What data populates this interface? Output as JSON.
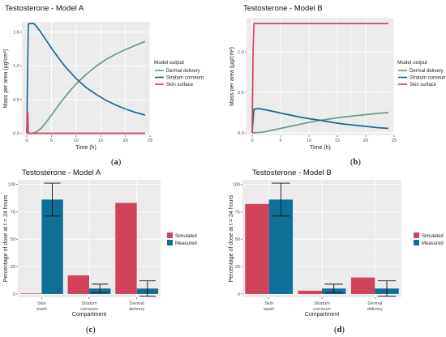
{
  "chart_data": [
    {
      "id": "a",
      "type": "line",
      "title": "Testosterone - Model  A",
      "xlabel": "Time (h)",
      "ylabel": "Mass per area (µg/cm²)",
      "xlim": [
        -1,
        25
      ],
      "ylim": [
        -0.03,
        1.65
      ],
      "xticks": [
        0,
        5,
        10,
        15,
        20,
        25
      ],
      "yticks": [
        0.0,
        0.5,
        1.0,
        1.5
      ],
      "ytick_labels": [
        "0.0",
        "0.5",
        "1.0",
        "1.5"
      ],
      "legend_title": "Model output",
      "legend_position": "right",
      "panel_label": "a",
      "series": [
        {
          "name": "Dermal delivery",
          "color": "#6a9e85",
          "x": [
            0,
            1,
            2,
            3,
            4,
            5,
            6,
            7,
            8,
            9,
            10,
            12,
            14,
            16,
            18,
            20,
            22,
            24
          ],
          "y": [
            0,
            0,
            0.02,
            0.08,
            0.17,
            0.27,
            0.37,
            0.47,
            0.56,
            0.65,
            0.73,
            0.87,
            0.99,
            1.09,
            1.17,
            1.24,
            1.3,
            1.36
          ]
        },
        {
          "name": "Stratum corneum",
          "color": "#1a6a92",
          "x": [
            0,
            0.15,
            0.3,
            1,
            1.5,
            2,
            3,
            4,
            5,
            6,
            7,
            8,
            10,
            12,
            14,
            16,
            18,
            20,
            22,
            24
          ],
          "y": [
            0,
            0.9,
            1.62,
            1.63,
            1.62,
            1.58,
            1.48,
            1.37,
            1.26,
            1.16,
            1.06,
            0.97,
            0.81,
            0.68,
            0.58,
            0.49,
            0.42,
            0.36,
            0.31,
            0.27
          ]
        },
        {
          "name": "Skin surface",
          "color": "#d1435b",
          "x": [
            0,
            0.1,
            0.2,
            0.3,
            1,
            24
          ],
          "y": [
            0,
            0.31,
            0.3,
            0.0,
            0.0,
            0.0
          ]
        }
      ]
    },
    {
      "id": "b",
      "type": "line",
      "title": "Testosterone - Model  B",
      "xlabel": "Time (h)",
      "ylabel": "Mass per area (µg/cm²)",
      "xlim": [
        -1,
        25
      ],
      "ylim": [
        -0.03,
        1.42
      ],
      "xticks": [
        0,
        5,
        10,
        15,
        20,
        25
      ],
      "yticks": [
        0.0,
        0.5,
        1.0
      ],
      "ytick_labels": [
        "0.0",
        "0.5",
        "1.0"
      ],
      "legend_title": "Model output",
      "legend_position": "right",
      "panel_label": "b",
      "series": [
        {
          "name": "Dermal delivery",
          "color": "#6a9e85",
          "x": [
            0,
            2,
            4,
            6,
            8,
            10,
            12,
            14,
            16,
            18,
            20,
            22,
            24
          ],
          "y": [
            0,
            0.01,
            0.04,
            0.07,
            0.1,
            0.13,
            0.155,
            0.175,
            0.195,
            0.21,
            0.225,
            0.24,
            0.25
          ]
        },
        {
          "name": "Stratum corneum",
          "color": "#1a6a92",
          "x": [
            0,
            0.3,
            1,
            2,
            4,
            6,
            8,
            10,
            12,
            14,
            16,
            18,
            20,
            22,
            24
          ],
          "y": [
            0,
            0.29,
            0.3,
            0.29,
            0.26,
            0.23,
            0.2,
            0.175,
            0.155,
            0.13,
            0.11,
            0.095,
            0.08,
            0.065,
            0.055
          ]
        },
        {
          "name": "Skin surface",
          "color": "#d1435b",
          "x": [
            0,
            0.15,
            0.3,
            24
          ],
          "y": [
            0,
            1.0,
            1.35,
            1.35
          ]
        }
      ]
    },
    {
      "id": "c",
      "type": "bar",
      "title": "Testosterone - Model  A",
      "xlabel": "Compartment",
      "ylabel": "Percentage of dose at t = 24 hours",
      "ylim": [
        -3,
        104
      ],
      "yticks": [
        0,
        25,
        50,
        75,
        100
      ],
      "categories": [
        "Skin wash",
        "Stratum corneum",
        "Dermal delivery"
      ],
      "category_lines": [
        [
          "Skin",
          "wash"
        ],
        [
          "Stratum",
          "corneum"
        ],
        [
          "Dermal",
          "delivery"
        ]
      ],
      "legend_position": "right",
      "panel_label": "c",
      "series": [
        {
          "name": "Simulated",
          "color": "#d1435b",
          "values": [
            0.5,
            17,
            83
          ]
        },
        {
          "name": "Measured",
          "color": "#0f6f96",
          "values": [
            86,
            5,
            5
          ],
          "err": [
            15,
            4,
            7
          ]
        }
      ]
    },
    {
      "id": "d",
      "type": "bar",
      "title": "Testosterone - Model  B",
      "xlabel": "Compartment",
      "ylabel": "Percentage of dose at t = 24 hours",
      "ylim": [
        -3,
        104
      ],
      "yticks": [
        0,
        25,
        50,
        75,
        100
      ],
      "categories": [
        "Skin wash",
        "Stratum corneum",
        "Dermal delivery"
      ],
      "category_lines": [
        [
          "Skin",
          "wash"
        ],
        [
          "Stratum",
          "corneum"
        ],
        [
          "Dermal",
          "delivery"
        ]
      ],
      "legend_position": "right",
      "panel_label": "d",
      "series": [
        {
          "name": "Simulated",
          "color": "#d1435b",
          "values": [
            82,
            3,
            15
          ]
        },
        {
          "name": "Measured",
          "color": "#0f6f96",
          "values": [
            86,
            5,
            5
          ],
          "err": [
            15,
            4,
            7
          ]
        }
      ]
    }
  ],
  "style": {
    "panel_bg": "#ebebeb",
    "grid_major": "#ffffff",
    "grid_minor": "#f4f4f4"
  }
}
